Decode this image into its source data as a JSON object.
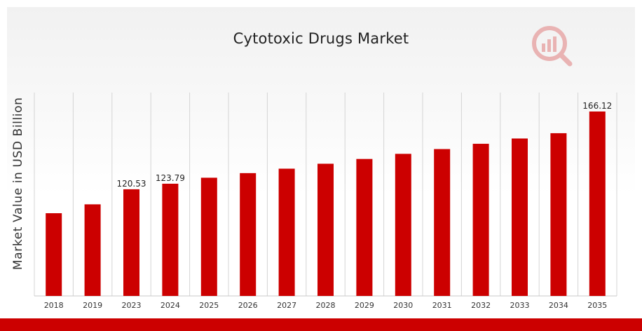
{
  "chart_data": {
    "type": "bar",
    "title": "Cytotoxic Drugs Market",
    "xlabel": "",
    "ylabel": "Market Value in USD Billion",
    "categories": [
      "2018",
      "2019",
      "2023",
      "2024",
      "2025",
      "2026",
      "2027",
      "2028",
      "2029",
      "2030",
      "2031",
      "2032",
      "2033",
      "2034",
      "2035"
    ],
    "values": [
      106.5,
      111.7,
      120.53,
      123.79,
      127.3,
      130.0,
      132.6,
      135.5,
      138.3,
      141.3,
      144.1,
      147.2,
      150.3,
      153.4,
      166.12
    ],
    "data_labels": {
      "2023": "120.53",
      "2024": "123.79",
      "2035": "166.12"
    },
    "ylim": [
      58,
      166.12
    ],
    "grid": "vertical",
    "colors": {
      "bar": "#cc0000",
      "grid": "#d4d4d4",
      "accent": "#cc0000"
    }
  }
}
